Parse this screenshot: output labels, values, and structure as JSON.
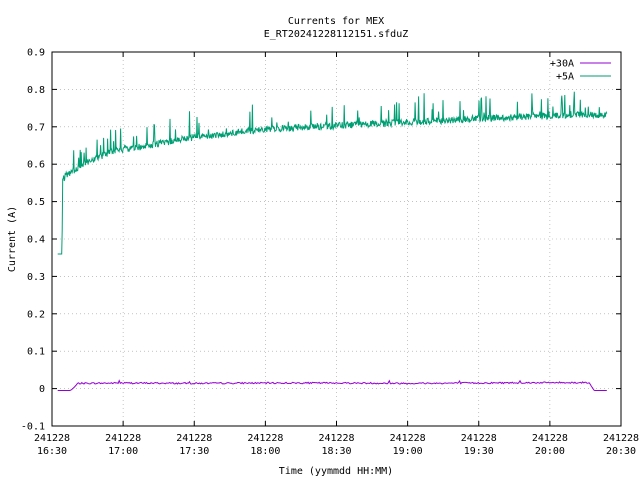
{
  "chart_data": {
    "type": "line",
    "title": "Currents for MEX",
    "subtitle": "E_RT20241228112151.sfduZ",
    "xlabel": "Time (yymmdd HH:MM)",
    "ylabel": "Current (A)",
    "x_unit": "hours since 16:30 on 241228",
    "xlim": [
      0,
      4.0
    ],
    "ylim": [
      -0.1,
      0.9
    ],
    "y_ticks": [
      -0.1,
      0,
      0.1,
      0.2,
      0.3,
      0.4,
      0.5,
      0.6,
      0.7,
      0.8,
      0.9
    ],
    "y_tick_labels": [
      "-0.1",
      "0",
      "0.1",
      "0.2",
      "0.3",
      "0.4",
      "0.5",
      "0.6",
      "0.7",
      "0.8",
      "0.9"
    ],
    "x_ticks": [
      0,
      0.5,
      1.0,
      1.5,
      2.0,
      2.5,
      3.0,
      3.5,
      4.0
    ],
    "x_tick_labels": [
      [
        "241228",
        "16:30"
      ],
      [
        "241228",
        "17:00"
      ],
      [
        "241228",
        "17:30"
      ],
      [
        "241228",
        "18:00"
      ],
      [
        "241228",
        "18:30"
      ],
      [
        "241228",
        "19:00"
      ],
      [
        "241228",
        "19:30"
      ],
      [
        "241228",
        "20:00"
      ],
      [
        "241228",
        "20:30"
      ]
    ],
    "grid": true,
    "legend_position": "top-right",
    "series": [
      {
        "name": "+30A",
        "color": "#9400d3",
        "x": [
          0.04,
          0.13,
          0.16,
          0.18,
          0.5,
          1.0,
          1.5,
          2.0,
          2.5,
          3.0,
          3.5,
          3.78,
          3.81,
          3.9
        ],
        "y": [
          -0.005,
          -0.005,
          0.005,
          0.014,
          0.015,
          0.014,
          0.015,
          0.015,
          0.014,
          0.015,
          0.016,
          0.016,
          -0.005,
          -0.005
        ]
      },
      {
        "name": "+5A",
        "color": "#009e73",
        "x": [
          0.04,
          0.07,
          0.075,
          0.1,
          0.2,
          0.3,
          0.4,
          0.5,
          0.6,
          0.75,
          0.9,
          1.0,
          1.2,
          1.4,
          1.6,
          1.8,
          2.0,
          2.2,
          2.4,
          2.6,
          2.8,
          3.0,
          3.2,
          3.4,
          3.6,
          3.75,
          3.9
        ],
        "y": [
          0.36,
          0.36,
          0.56,
          0.57,
          0.595,
          0.615,
          0.63,
          0.64,
          0.645,
          0.655,
          0.665,
          0.672,
          0.68,
          0.69,
          0.695,
          0.7,
          0.703,
          0.706,
          0.71,
          0.714,
          0.718,
          0.722,
          0.725,
          0.728,
          0.731,
          0.733,
          0.733
        ]
      }
    ],
    "annotations": []
  }
}
